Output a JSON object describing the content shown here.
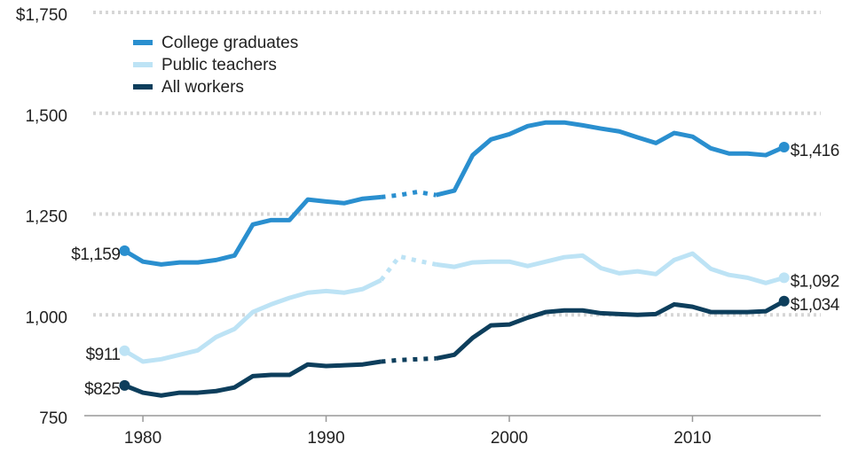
{
  "chart_data": {
    "type": "line",
    "x": [
      1979,
      1980,
      1981,
      1982,
      1983,
      1984,
      1985,
      1986,
      1987,
      1988,
      1989,
      1990,
      1991,
      1992,
      1993,
      1994,
      1995,
      1996,
      1997,
      1998,
      1999,
      2000,
      2001,
      2002,
      2003,
      2004,
      2005,
      2006,
      2007,
      2008,
      2009,
      2010,
      2011,
      2012,
      2013,
      2014,
      2015
    ],
    "series": [
      {
        "name": "College graduates",
        "color": "#2a8fcf",
        "values": [
          1159,
          1132,
          1125,
          1130,
          1130,
          1136,
          1147,
          1224,
          1235,
          1235,
          1286,
          1281,
          1277,
          1288,
          1292,
          1297,
          1305,
          1297,
          1308,
          1396,
          1435,
          1448,
          1468,
          1477,
          1477,
          1470,
          1462,
          1455,
          1440,
          1426,
          1451,
          1442,
          1413,
          1400,
          1400,
          1396,
          1416
        ],
        "value_labels": [
          "$1,159",
          null,
          null,
          null,
          null,
          null,
          null,
          null,
          null,
          null,
          null,
          null,
          null,
          null,
          null,
          null,
          null,
          null,
          null,
          null,
          null,
          null,
          null,
          null,
          null,
          null,
          null,
          null,
          null,
          null,
          null,
          null,
          null,
          null,
          null,
          null,
          "$1,416"
        ]
      },
      {
        "name": "Public teachers",
        "color": "#bde3f5",
        "values": [
          911,
          884,
          890,
          901,
          912,
          945,
          965,
          1007,
          1026,
          1042,
          1055,
          1059,
          1055,
          1064,
          1086,
          1145,
          1134,
          1125,
          1119,
          1130,
          1132,
          1132,
          1121,
          1132,
          1143,
          1147,
          1116,
          1103,
          1108,
          1101,
          1136,
          1152,
          1114,
          1099,
          1092,
          1079,
          1092
        ],
        "value_labels": [
          "$911",
          null,
          null,
          null,
          null,
          null,
          null,
          null,
          null,
          null,
          null,
          null,
          null,
          null,
          null,
          null,
          null,
          null,
          null,
          null,
          null,
          null,
          null,
          null,
          null,
          null,
          null,
          null,
          null,
          null,
          null,
          null,
          null,
          null,
          null,
          null,
          "$1,092"
        ]
      },
      {
        "name": "All workers",
        "color": "#0d3e5c",
        "values": [
          825,
          807,
          800,
          807,
          807,
          811,
          820,
          848,
          851,
          851,
          877,
          873,
          875,
          877,
          884,
          888,
          890,
          892,
          901,
          943,
          974,
          976,
          993,
          1007,
          1011,
          1011,
          1004,
          1002,
          1000,
          1002,
          1026,
          1020,
          1007,
          1007,
          1007,
          1009,
          1034
        ],
        "value_labels": [
          "$825",
          null,
          null,
          null,
          null,
          null,
          null,
          null,
          null,
          null,
          null,
          null,
          null,
          null,
          null,
          null,
          null,
          null,
          null,
          null,
          null,
          null,
          null,
          null,
          null,
          null,
          null,
          null,
          null,
          null,
          null,
          null,
          null,
          null,
          null,
          null,
          "$1,034"
        ]
      }
    ],
    "dotted_x": [
      1993,
      1996
    ],
    "xlim": [
      1976.8,
      2017
    ],
    "xticks": [
      1980,
      1990,
      2000,
      2010
    ],
    "ylim": [
      750,
      1750
    ],
    "yticks": [
      750,
      {
        "value": 1000,
        "label": "1,000"
      },
      {
        "value": 1250,
        "label": "1,250"
      },
      {
        "value": 1500,
        "label": "1,500"
      },
      {
        "value": 1750,
        "label": "$1,750"
      }
    ],
    "grid": true,
    "legend": "top-left"
  }
}
